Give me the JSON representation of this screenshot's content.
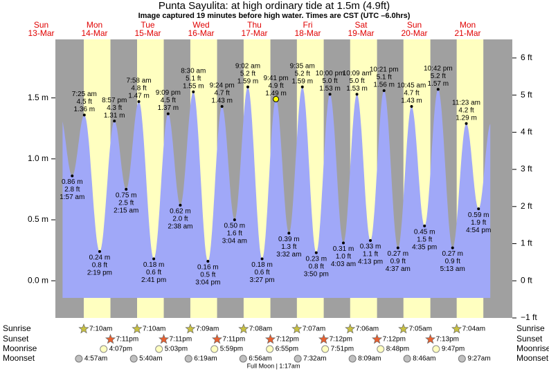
{
  "header": {
    "title": "Punta Sayulita: at high  ordinary tide at 1.5m (4.9ft)",
    "subtitle": "Image captured 19 minutes before high water. Times are CST (UTC –6.0hrs)"
  },
  "chart_data": {
    "type": "area",
    "ylim": [
      -0.305,
      1.98
    ],
    "yticks": [
      {
        "value": 0,
        "label": "0.0 m"
      },
      {
        "value": 0.5,
        "label": "0.5 m"
      },
      {
        "value": 1,
        "label": "1.0 m"
      },
      {
        "value": 1.5,
        "label": "1.5 m"
      }
    ],
    "y2lim": [
      -1,
      6.5
    ],
    "y2ticks": [
      {
        "value": -1,
        "label": "−1 ft"
      },
      {
        "value": 0,
        "label": "0 ft"
      },
      {
        "value": 1,
        "label": "1 ft"
      },
      {
        "value": 2,
        "label": "2 ft"
      },
      {
        "value": 3,
        "label": "3 ft"
      },
      {
        "value": 4,
        "label": "4 ft"
      },
      {
        "value": 5,
        "label": "5 ft"
      },
      {
        "value": 6,
        "label": "6 ft"
      }
    ],
    "colors": {
      "night": "#a0a0a0",
      "day": "#ffffc0",
      "water": "#a0a8f8",
      "day_label": "#e00000"
    },
    "rows": [
      "Sunrise",
      "Sunset",
      "Moonrise",
      "Moonset"
    ],
    "days": [
      {
        "name": "Sun",
        "date": "13-Mar",
        "tides": []
      },
      {
        "name": "Mon",
        "date": "14-Mar",
        "sunrise": "7:10am",
        "sunset": "7:11pm",
        "moonrise": "4:07pm",
        "moonset": "4:57am",
        "tides": [
          {
            "time": "1:57 am",
            "m": 0.86,
            "m_label": "0.86 m",
            "ft": 2.8,
            "ft_label": "2.8 ft"
          },
          {
            "time": "7:25 am",
            "m": 1.36,
            "m_label": "1.36 m",
            "ft": 4.5,
            "ft_label": "4.5 ft"
          },
          {
            "time": "2:19 pm",
            "m": 0.24,
            "m_label": "0.24 m",
            "ft": 0.8,
            "ft_label": "0.8 ft"
          },
          {
            "time": "8:57 pm",
            "m": 1.31,
            "m_label": "1.31 m",
            "ft": 4.3,
            "ft_label": "4.3 ft"
          }
        ]
      },
      {
        "name": "Tue",
        "date": "15-Mar",
        "sunrise": "7:10am",
        "sunset": "7:11pm",
        "moonrise": "5:03pm",
        "moonset": "5:40am",
        "tides": [
          {
            "time": "2:15 am",
            "m": 0.75,
            "m_label": "0.75 m",
            "ft": 2.5,
            "ft_label": "2.5 ft"
          },
          {
            "time": "7:58 am",
            "m": 1.47,
            "m_label": "1.47 m",
            "ft": 4.8,
            "ft_label": "4.8 ft"
          },
          {
            "time": "2:41 pm",
            "m": 0.18,
            "m_label": "0.18 m",
            "ft": 0.6,
            "ft_label": "0.6 ft"
          },
          {
            "time": "9:09 pm",
            "m": 1.37,
            "m_label": "1.37 m",
            "ft": 4.5,
            "ft_label": "4.5 ft"
          }
        ]
      },
      {
        "name": "Wed",
        "date": "16-Mar",
        "sunrise": "7:09am",
        "sunset": "7:11pm",
        "moonrise": "5:59pm",
        "moonset": "6:19am",
        "tides": [
          {
            "time": "2:38 am",
            "m": 0.62,
            "m_label": "0.62 m",
            "ft": 2.0,
            "ft_label": "2.0 ft"
          },
          {
            "time": "8:30 am",
            "m": 1.55,
            "m_label": "1.55 m",
            "ft": 5.1,
            "ft_label": "5.1 ft"
          },
          {
            "time": "3:04 pm",
            "m": 0.16,
            "m_label": "0.16 m",
            "ft": 0.5,
            "ft_label": "0.5 ft"
          },
          {
            "time": "9:24 pm",
            "m": 1.43,
            "m_label": "1.43 m",
            "ft": 4.7,
            "ft_label": "4.7 ft"
          }
        ]
      },
      {
        "name": "Thu",
        "date": "17-Mar",
        "sunrise": "7:08am",
        "sunset": "7:12pm",
        "moonrise": "6:55pm",
        "moonset": "6:56am",
        "tides": [
          {
            "time": "3:04 am",
            "m": 0.5,
            "m_label": "0.50 m",
            "ft": 1.6,
            "ft_label": "1.6 ft"
          },
          {
            "time": "9:02 am",
            "m": 1.59,
            "m_label": "1.59 m",
            "ft": 5.2,
            "ft_label": "5.2 ft"
          },
          {
            "time": "3:27 pm",
            "m": 0.18,
            "m_label": "0.18 m",
            "ft": 0.6,
            "ft_label": "0.6 ft"
          },
          {
            "time": "9:41 pm",
            "m": 1.49,
            "m_label": "1.49 m",
            "ft": 4.9,
            "ft_label": "4.9 ft"
          }
        ]
      },
      {
        "name": "Fri",
        "date": "18-Mar",
        "sunrise": "7:07am",
        "sunset": "7:12pm",
        "moonrise": "7:51pm",
        "moonset": "7:32am",
        "tides": [
          {
            "time": "3:32 am",
            "m": 0.39,
            "m_label": "0.39 m",
            "ft": 1.3,
            "ft_label": "1.3 ft"
          },
          {
            "time": "9:35 am",
            "m": 1.59,
            "m_label": "1.59 m",
            "ft": 5.2,
            "ft_label": "5.2 ft"
          },
          {
            "time": "3:50 pm",
            "m": 0.23,
            "m_label": "0.23 m",
            "ft": 0.8,
            "ft_label": "0.8 ft"
          },
          {
            "time": "10:00 pm",
            "m": 1.53,
            "m_label": "1.53 m",
            "ft": 5.0,
            "ft_label": "5.0 ft"
          }
        ]
      },
      {
        "name": "Sat",
        "date": "19-Mar",
        "sunrise": "7:06am",
        "sunset": "7:12pm",
        "moonrise": "8:48pm",
        "moonset": "8:09am",
        "tides": [
          {
            "time": "4:03 am",
            "m": 0.31,
            "m_label": "0.31 m",
            "ft": 1.0,
            "ft_label": "1.0 ft"
          },
          {
            "time": "10:09 am",
            "m": 1.53,
            "m_label": "1.53 m",
            "ft": 5.0,
            "ft_label": "5.0 ft"
          },
          {
            "time": "4:13 pm",
            "m": 0.33,
            "m_label": "0.33 m",
            "ft": 1.1,
            "ft_label": "1.1 ft"
          },
          {
            "time": "10:21 pm",
            "m": 1.56,
            "m_label": "1.56 m",
            "ft": 5.1,
            "ft_label": "5.1 ft"
          }
        ]
      },
      {
        "name": "Sun",
        "date": "20-Mar",
        "sunrise": "7:05am",
        "sunset": "7:13pm",
        "moonrise": "9:47pm",
        "moonset": "8:46am",
        "tides": [
          {
            "time": "4:37 am",
            "m": 0.27,
            "m_label": "0.27 m",
            "ft": 0.9,
            "ft_label": "0.9 ft"
          },
          {
            "time": "10:45 am",
            "m": 1.43,
            "m_label": "1.43 m",
            "ft": 4.7,
            "ft_label": "4.7 ft"
          },
          {
            "time": "4:35 pm",
            "m": 0.45,
            "m_label": "0.45 m",
            "ft": 1.5,
            "ft_label": "1.5 ft"
          },
          {
            "time": "10:42 pm",
            "m": 1.57,
            "m_label": "1.57 m",
            "ft": 5.2,
            "ft_label": "5.2 ft"
          }
        ]
      },
      {
        "name": "Mon",
        "date": "21-Mar",
        "sunrise": "7:04am",
        "moonset": "9:27am",
        "tides": [
          {
            "time": "5:13 am",
            "m": 0.27,
            "m_label": "0.27 m",
            "ft": 0.9,
            "ft_label": "0.9 ft"
          },
          {
            "time": "11:23 am",
            "m": 1.29,
            "m_label": "1.29 m",
            "ft": 4.2,
            "ft_label": "4.2 ft"
          },
          {
            "time": "4:54 pm",
            "m": 0.59,
            "m_label": "0.59 m",
            "ft": 1.9,
            "ft_label": "1.9 ft"
          }
        ]
      }
    ],
    "moon_phase": "Full Moon | 1:17am"
  }
}
